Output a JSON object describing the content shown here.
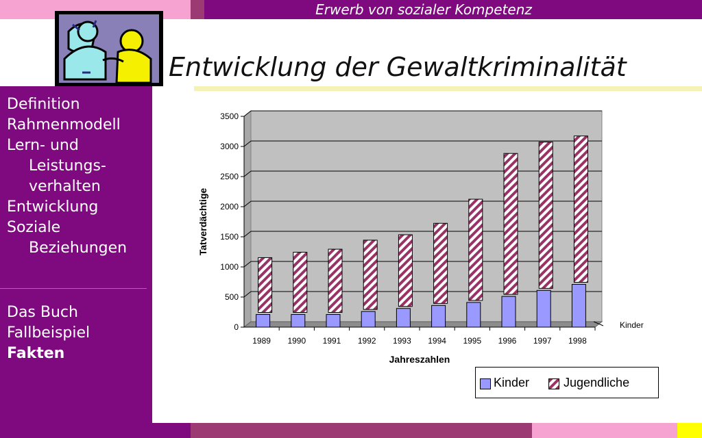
{
  "header": {
    "top_title": "Erwerb von sozialer Kompetenz",
    "title": "Entwicklung der Gewaltkriminalität"
  },
  "sidebar": {
    "items": [
      {
        "label": "Definition"
      },
      {
        "label": "Rahmenmodell"
      },
      {
        "label_lines": [
          "Lern- und",
          "Leistungs-",
          "verhalten"
        ]
      },
      {
        "label": "Entwicklung"
      },
      {
        "label_lines": [
          "Soziale",
          "Beziehungen"
        ]
      }
    ],
    "items2": [
      {
        "label": "Das Buch"
      },
      {
        "label": "Fallbeispiel"
      },
      {
        "label": "Fakten",
        "active": true
      }
    ]
  },
  "colors": {
    "purple": "#7f0a7f",
    "pink": "#f7a3d2",
    "mauve": "#9b3a73",
    "yellow": "#ffff00",
    "kinder": "#9999ff",
    "jugendliche_stripe": "#993366"
  },
  "chart_data": {
    "type": "bar",
    "stacked": true,
    "categories": [
      "1989",
      "1990",
      "1991",
      "1992",
      "1993",
      "1994",
      "1995",
      "1996",
      "1997",
      "1998"
    ],
    "series": [
      {
        "name": "Kinder",
        "values": [
          210,
          210,
          210,
          260,
          310,
          360,
          410,
          510,
          610,
          710
        ]
      },
      {
        "name": "Jugendliche",
        "values": [
          910,
          1000,
          1050,
          1150,
          1190,
          1330,
          1680,
          2340,
          2430,
          2430
        ]
      }
    ],
    "xlabel": "Jahreszahlen",
    "ylabel": "Tatverdächtige",
    "ylim": [
      0,
      3500
    ],
    "yticks": [
      0,
      500,
      1000,
      1500,
      2000,
      2500,
      3000,
      3500
    ],
    "grid": true,
    "depth_label": "Kinder",
    "legend": {
      "placement": "bottom-right",
      "entries": [
        "Kinder",
        "Jugendliche"
      ]
    }
  }
}
